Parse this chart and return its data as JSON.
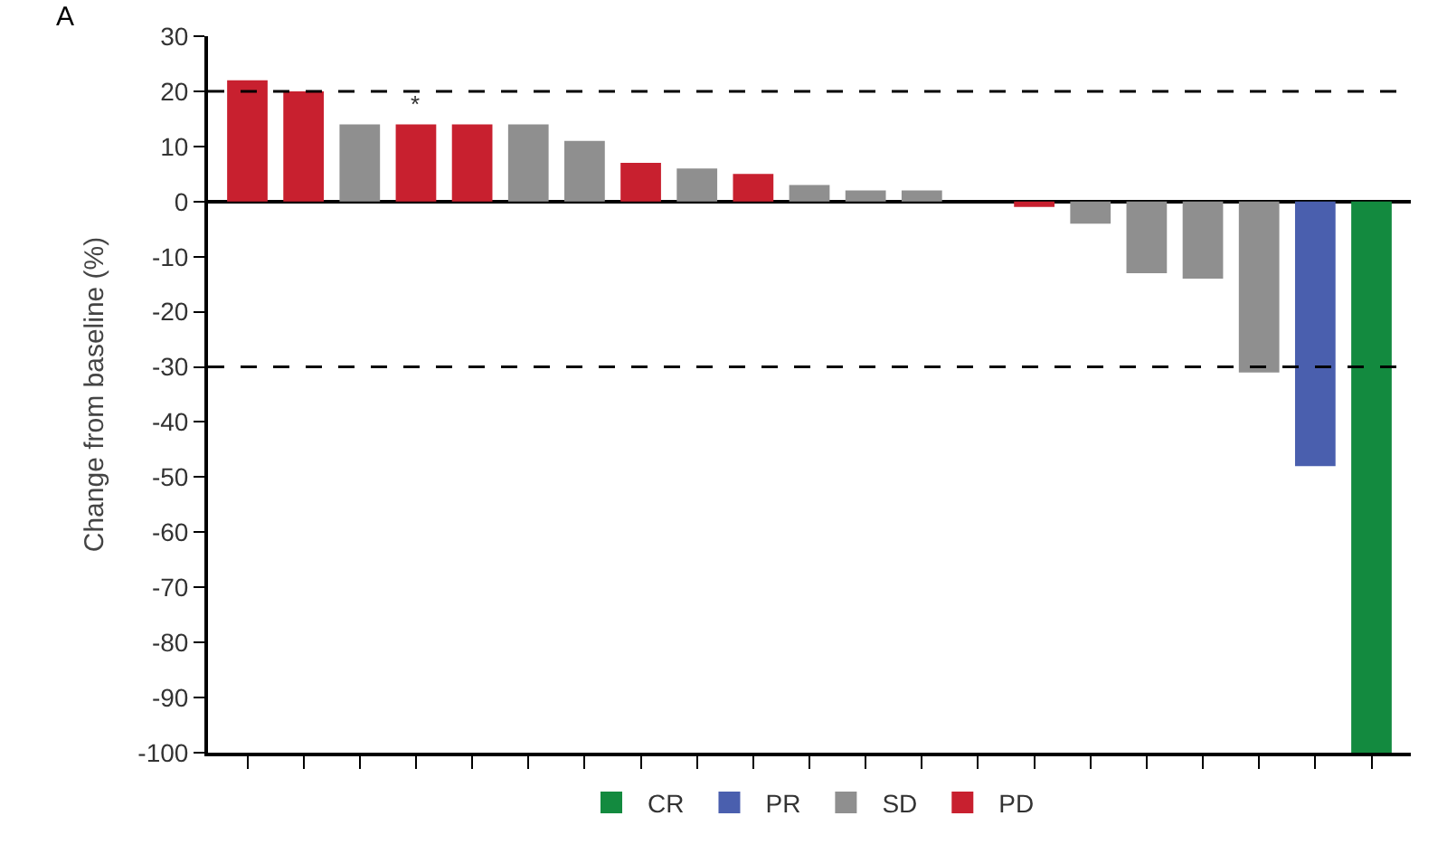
{
  "chart_data": {
    "type": "bar",
    "categories": [
      null,
      null,
      null,
      null,
      null,
      null,
      null,
      null,
      null,
      null,
      null,
      null,
      null,
      null,
      null,
      null,
      null,
      null,
      null,
      null,
      null
    ],
    "series": [
      {
        "name": "CR",
        "color": "#138a3f",
        "values": [
          null,
          null,
          null,
          null,
          null,
          null,
          null,
          null,
          null,
          null,
          null,
          null,
          null,
          null,
          null,
          null,
          null,
          null,
          null,
          null,
          -100
        ]
      },
      {
        "name": "PR",
        "color": "#4a5fae",
        "values": [
          null,
          null,
          null,
          null,
          null,
          null,
          null,
          null,
          null,
          null,
          null,
          null,
          null,
          null,
          null,
          null,
          null,
          null,
          null,
          -48,
          null
        ]
      },
      {
        "name": "SD",
        "color": "#8f8f8f",
        "values": [
          null,
          null,
          14,
          null,
          null,
          14,
          11,
          null,
          6,
          null,
          3,
          2,
          2,
          0,
          null,
          -4,
          -13,
          -14,
          -31,
          null,
          null
        ]
      },
      {
        "name": "PD",
        "color": "#c8202f",
        "values": [
          22,
          20,
          null,
          14,
          14,
          null,
          null,
          7,
          null,
          5,
          null,
          null,
          null,
          null,
          -1,
          null,
          null,
          null,
          null,
          null,
          null
        ]
      }
    ],
    "ylabel": "Change from baseline (%)",
    "ylim": [
      -100,
      30
    ],
    "yticks": [
      30,
      20,
      10,
      0,
      -10,
      -20,
      -30,
      -40,
      -50,
      -60,
      -70,
      -80,
      -90,
      -100
    ],
    "ref_lines": [
      {
        "axis": "y",
        "value": 20,
        "line_style": "dashed",
        "color": "#000000"
      },
      {
        "axis": "y",
        "value": -30,
        "line_style": "dashed",
        "color": "#000000"
      }
    ],
    "annotations": [
      "A",
      "*"
    ],
    "legend": "bottom"
  }
}
